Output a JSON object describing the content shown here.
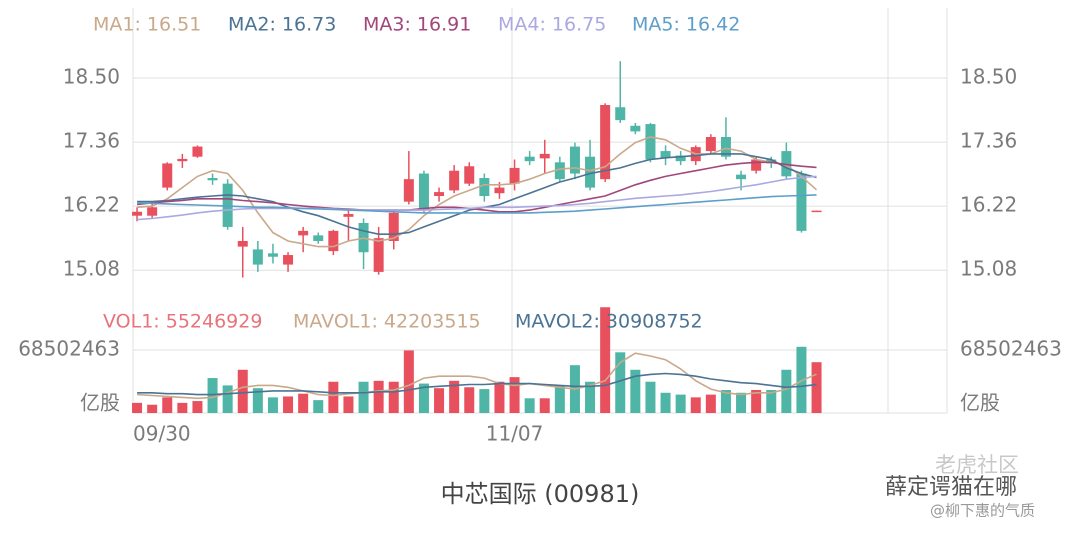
{
  "chart_data": {
    "type": "candlestick",
    "title": "中芯国际 (00981)",
    "watermark": [
      "老虎社区",
      "薛定谔猫在哪",
      "@柳下惠的气质"
    ],
    "categories": [
      "09/30",
      null,
      null,
      null,
      null,
      null,
      null,
      null,
      null,
      null,
      null,
      null,
      null,
      null,
      null,
      null,
      null,
      null,
      null,
      null,
      null,
      null,
      null,
      null,
      null,
      "11/07",
      null,
      null,
      null,
      null,
      null,
      null,
      null,
      null,
      null,
      null,
      null,
      null,
      null,
      null,
      null,
      null,
      null,
      null,
      null,
      null
    ],
    "open": [
      16.05,
      16.05,
      16.55,
      17.02,
      17.1,
      16.72,
      16.62,
      15.5,
      15.45,
      15.38,
      15.18,
      15.7,
      15.7,
      15.42,
      16.03,
      15.92,
      15.05,
      15.6,
      16.3,
      16.8,
      16.4,
      16.5,
      16.62,
      16.72,
      16.45,
      16.62,
      17.1,
      17.07,
      17.0,
      17.28,
      17.1,
      16.7,
      17.98,
      17.65,
      17.68,
      17.2,
      17.12,
      17.02,
      17.2,
      17.45,
      16.78,
      16.85,
      17.05,
      17.2,
      16.8,
      16.13
    ],
    "high": [
      16.2,
      16.3,
      17.0,
      17.15,
      17.3,
      16.8,
      16.7,
      15.85,
      15.6,
      15.55,
      15.4,
      15.85,
      15.75,
      15.8,
      16.15,
      16.0,
      15.85,
      16.15,
      17.2,
      16.85,
      16.55,
      16.95,
      17.0,
      16.8,
      16.65,
      17.05,
      17.2,
      17.4,
      17.1,
      17.35,
      17.4,
      18.05,
      18.8,
      17.7,
      17.7,
      17.3,
      17.2,
      17.3,
      17.5,
      17.8,
      16.85,
      17.1,
      17.1,
      17.35,
      16.85,
      16.14
    ],
    "low": [
      15.95,
      16.0,
      16.5,
      16.9,
      17.08,
      16.6,
      15.8,
      14.95,
      15.05,
      15.2,
      15.05,
      15.4,
      15.55,
      15.35,
      15.6,
      15.1,
      15.0,
      15.45,
      16.25,
      16.1,
      16.3,
      16.45,
      16.58,
      16.3,
      16.35,
      16.5,
      16.95,
      16.8,
      16.65,
      16.7,
      16.5,
      16.65,
      17.7,
      17.5,
      17.0,
      16.95,
      16.95,
      16.95,
      17.15,
      17.05,
      16.5,
      16.8,
      16.9,
      16.7,
      15.75,
      16.12
    ],
    "close": [
      16.12,
      16.2,
      16.98,
      17.06,
      17.28,
      16.68,
      15.85,
      15.6,
      15.18,
      15.32,
      15.35,
      15.78,
      15.6,
      15.78,
      16.08,
      15.4,
      15.65,
      16.1,
      16.7,
      16.15,
      16.47,
      16.85,
      16.93,
      16.4,
      16.55,
      16.9,
      17.02,
      17.15,
      16.7,
      16.8,
      16.55,
      18.02,
      17.75,
      17.55,
      17.05,
      17.08,
      17.02,
      17.27,
      17.45,
      17.1,
      16.7,
      17.05,
      16.98,
      16.75,
      15.78,
      16.14
    ],
    "up_color": "#e8505e",
    "down_color": "#4fb5a6",
    "ylim": [
      14.55,
      19.71
    ],
    "yticks": [
      15.08,
      16.22,
      17.36,
      {
        "value": 18.5,
        "label": "18.50"
      }
    ],
    "grid": true,
    "series": [
      {
        "name": "MA1: 16.51",
        "color": "#c9a98a",
        "values": [
          16.2,
          16.22,
          16.35,
          16.55,
          16.75,
          16.85,
          16.8,
          16.5,
          16.1,
          15.75,
          15.6,
          15.55,
          15.5,
          15.5,
          15.6,
          15.65,
          15.6,
          15.65,
          15.8,
          16.05,
          16.25,
          16.4,
          16.5,
          16.6,
          16.6,
          16.62,
          16.7,
          16.8,
          16.88,
          16.9,
          16.85,
          16.92,
          17.15,
          17.35,
          17.45,
          17.4,
          17.25,
          17.15,
          17.15,
          17.25,
          17.2,
          17.05,
          17.0,
          16.95,
          16.75,
          16.51
        ]
      },
      {
        "name": "MA2: 16.73",
        "color": "#4b7393",
        "values": [
          16.3,
          16.3,
          16.32,
          16.35,
          16.38,
          16.4,
          16.42,
          16.4,
          16.35,
          16.3,
          16.2,
          16.12,
          16.05,
          15.95,
          15.85,
          15.78,
          15.72,
          15.72,
          15.75,
          15.85,
          15.95,
          16.05,
          16.15,
          16.2,
          16.25,
          16.35,
          16.45,
          16.55,
          16.65,
          16.72,
          16.8,
          16.85,
          16.9,
          16.98,
          17.05,
          17.08,
          17.1,
          17.12,
          17.15,
          17.15,
          17.15,
          17.1,
          17.05,
          16.9,
          16.8,
          16.73
        ]
      },
      {
        "name": "MA3: 16.91",
        "color": "#a2467c",
        "values": [
          16.25,
          16.28,
          16.3,
          16.32,
          16.35,
          16.35,
          16.35,
          16.32,
          16.3,
          16.28,
          16.25,
          16.22,
          16.2,
          16.18,
          16.17,
          16.15,
          16.15,
          16.15,
          16.15,
          16.18,
          16.2,
          16.2,
          16.18,
          16.15,
          16.12,
          16.12,
          16.15,
          16.2,
          16.25,
          16.3,
          16.35,
          16.4,
          16.5,
          16.6,
          16.68,
          16.75,
          16.8,
          16.85,
          16.9,
          16.95,
          16.98,
          17.0,
          17.0,
          16.96,
          16.93,
          16.91
        ]
      },
      {
        "name": "MA4: 16.75",
        "color": "#aaa9e2",
        "values": [
          15.98,
          16.0,
          16.03,
          16.06,
          16.1,
          16.13,
          16.15,
          16.17,
          16.18,
          16.18,
          16.18,
          16.18,
          16.18,
          16.17,
          16.16,
          16.15,
          16.15,
          16.15,
          16.15,
          16.15,
          16.16,
          16.17,
          16.18,
          16.2,
          16.2,
          16.2,
          16.21,
          16.22,
          16.23,
          16.25,
          16.27,
          16.3,
          16.33,
          16.36,
          16.38,
          16.4,
          16.42,
          16.45,
          16.48,
          16.52,
          16.56,
          16.6,
          16.65,
          16.7,
          16.73,
          16.75
        ]
      },
      {
        "name": "MA5: 16.42",
        "color": "#5d9fca",
        "values": [
          16.28,
          16.27,
          16.26,
          16.25,
          16.24,
          16.23,
          16.22,
          16.21,
          16.2,
          16.2,
          16.19,
          16.18,
          16.17,
          16.16,
          16.15,
          16.14,
          16.13,
          16.12,
          16.11,
          16.1,
          16.1,
          16.1,
          16.1,
          16.1,
          16.1,
          16.1,
          16.1,
          16.11,
          16.12,
          16.13,
          16.15,
          16.17,
          16.19,
          16.21,
          16.23,
          16.25,
          16.27,
          16.29,
          16.31,
          16.33,
          16.35,
          16.37,
          16.39,
          16.4,
          16.41,
          16.42
        ]
      }
    ],
    "volume": {
      "name": "VOL1: 55246929",
      "color": "#e8737a",
      "unit_label": "亿股",
      "ylim": [
        0,
        112000000
      ],
      "yticks": [
        68502463
      ],
      "values": [
        11000000,
        9000000,
        17000000,
        11000000,
        13000000,
        38000000,
        30000000,
        47000000,
        27000000,
        17000000,
        18000000,
        21000000,
        14000000,
        34000000,
        18000000,
        34000000,
        35000000,
        34000000,
        68000000,
        32000000,
        27000000,
        35000000,
        28000000,
        26000000,
        34000000,
        39000000,
        16000000,
        16000000,
        30000000,
        52000000,
        34000000,
        115000000,
        66000000,
        47000000,
        34000000,
        22000000,
        20000000,
        17000000,
        20000000,
        25000000,
        22000000,
        25000000,
        25000000,
        47000000,
        72000000,
        55246929
      ],
      "series": [
        {
          "name": "MAVOL1: 42203515",
          "color": "#c9a98a",
          "values": [
            20000000,
            19000000,
            18000000,
            17000000,
            16000000,
            17000000,
            22000000,
            28000000,
            30000000,
            30000000,
            28000000,
            24000000,
            20000000,
            19000000,
            21000000,
            22000000,
            24000000,
            25000000,
            30000000,
            38000000,
            40000000,
            40000000,
            40000000,
            38000000,
            32000000,
            30000000,
            32000000,
            30000000,
            28000000,
            26000000,
            30000000,
            35000000,
            55000000,
            65000000,
            62000000,
            58000000,
            48000000,
            35000000,
            26000000,
            22000000,
            20000000,
            22000000,
            22000000,
            26000000,
            35000000,
            42203515
          ]
        },
        {
          "name": "MAVOL2: 30908752",
          "color": "#4b7393",
          "values": [
            22000000,
            22000000,
            21000000,
            21000000,
            20000000,
            20000000,
            21000000,
            22000000,
            23000000,
            24000000,
            24000000,
            24000000,
            23000000,
            22000000,
            22000000,
            22000000,
            23000000,
            23000000,
            25000000,
            28000000,
            29000000,
            30000000,
            31000000,
            31000000,
            32000000,
            32000000,
            32000000,
            31000000,
            30000000,
            29000000,
            29000000,
            30000000,
            35000000,
            40000000,
            42000000,
            43000000,
            42000000,
            40000000,
            37000000,
            35000000,
            33000000,
            32000000,
            30000000,
            28000000,
            29000000,
            30908752
          ]
        }
      ]
    }
  }
}
